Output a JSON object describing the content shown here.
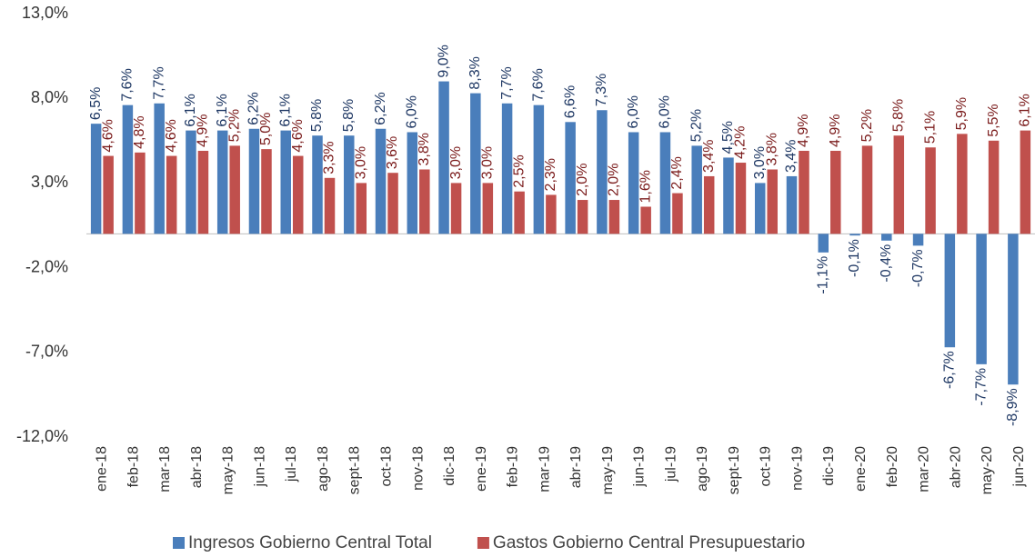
{
  "chart_data": {
    "type": "bar",
    "categories": [
      "ene-18",
      "feb-18",
      "mar-18",
      "abr-18",
      "may-18",
      "jun-18",
      "jul-18",
      "ago-18",
      "sept-18",
      "oct-18",
      "nov-18",
      "dic-18",
      "ene-19",
      "feb-19",
      "mar-19",
      "abr-19",
      "may-19",
      "jun-19",
      "jul-19",
      "ago-19",
      "sept-19",
      "oct-19",
      "nov-19",
      "dic-19",
      "ene-20",
      "feb-20",
      "mar-20",
      "abr-20",
      "may-20",
      "jun-20"
    ],
    "series": [
      {
        "name": "Ingresos Gobierno Central Total",
        "color": "#4a7ebb",
        "label_color": "#1f3864",
        "values": [
          6.5,
          7.6,
          7.7,
          6.1,
          6.1,
          6.2,
          6.1,
          5.8,
          5.8,
          6.2,
          6.0,
          9.0,
          8.3,
          7.7,
          7.6,
          6.6,
          7.3,
          6.0,
          6.0,
          5.2,
          4.5,
          3.0,
          3.4,
          -1.1,
          -0.1,
          -0.4,
          -0.7,
          -6.7,
          -7.7,
          -8.9
        ],
        "value_labels": [
          "6,5%",
          "7,6%",
          "7,7%",
          "6,1%",
          "6,1%",
          "6,2%",
          "6,1%",
          "5,8%",
          "5,8%",
          "6,2%",
          "6,0%",
          "9,0%",
          "8,3%",
          "7,7%",
          "7,6%",
          "6,6%",
          "7,3%",
          "6,0%",
          "6,0%",
          "5,2%",
          "4,5%",
          "3,0%",
          "3,4%",
          "-1,1%",
          "-0,1%",
          "-0,4%",
          "-0,7%",
          "-6,7%",
          "-7,7%",
          "-8,9%"
        ]
      },
      {
        "name": "Gastos Gobierno Central Presupuestario",
        "color": "#c0504d",
        "label_color": "#7b1c1c",
        "values": [
          4.6,
          4.8,
          4.6,
          4.9,
          5.2,
          5.0,
          4.6,
          3.3,
          3.0,
          3.6,
          3.8,
          3.0,
          3.0,
          2.5,
          2.3,
          2.0,
          2.0,
          1.6,
          2.4,
          3.4,
          4.2,
          3.8,
          4.9,
          4.9,
          5.2,
          5.8,
          5.1,
          5.9,
          5.5,
          6.1
        ],
        "value_labels": [
          "4,6%",
          "4,8%",
          "4,6%",
          "4,9%",
          "5,2%",
          "5,0%",
          "4,6%",
          "3,3%",
          "3,0%",
          "3,6%",
          "3,8%",
          "3,0%",
          "3,0%",
          "2,5%",
          "2,3%",
          "2,0%",
          "2,0%",
          "1,6%",
          "2,4%",
          "3,4%",
          "4,2%",
          "3,8%",
          "4,9%",
          "4,9%",
          "5,2%",
          "5,8%",
          "5,1%",
          "5,9%",
          "5,5%",
          "6,1%"
        ]
      }
    ],
    "ylim": [
      -12,
      13
    ],
    "yticks": [
      {
        "value": -12,
        "label": "-12,0%"
      },
      {
        "value": -7,
        "label": "-7,0%"
      },
      {
        "value": -2,
        "label": "-2,0%"
      },
      {
        "value": 3,
        "label": "3,0%"
      },
      {
        "value": 8,
        "label": "8,0%"
      },
      {
        "value": 13,
        "label": "13,0%"
      }
    ],
    "grid": false,
    "legend": "bottom"
  }
}
